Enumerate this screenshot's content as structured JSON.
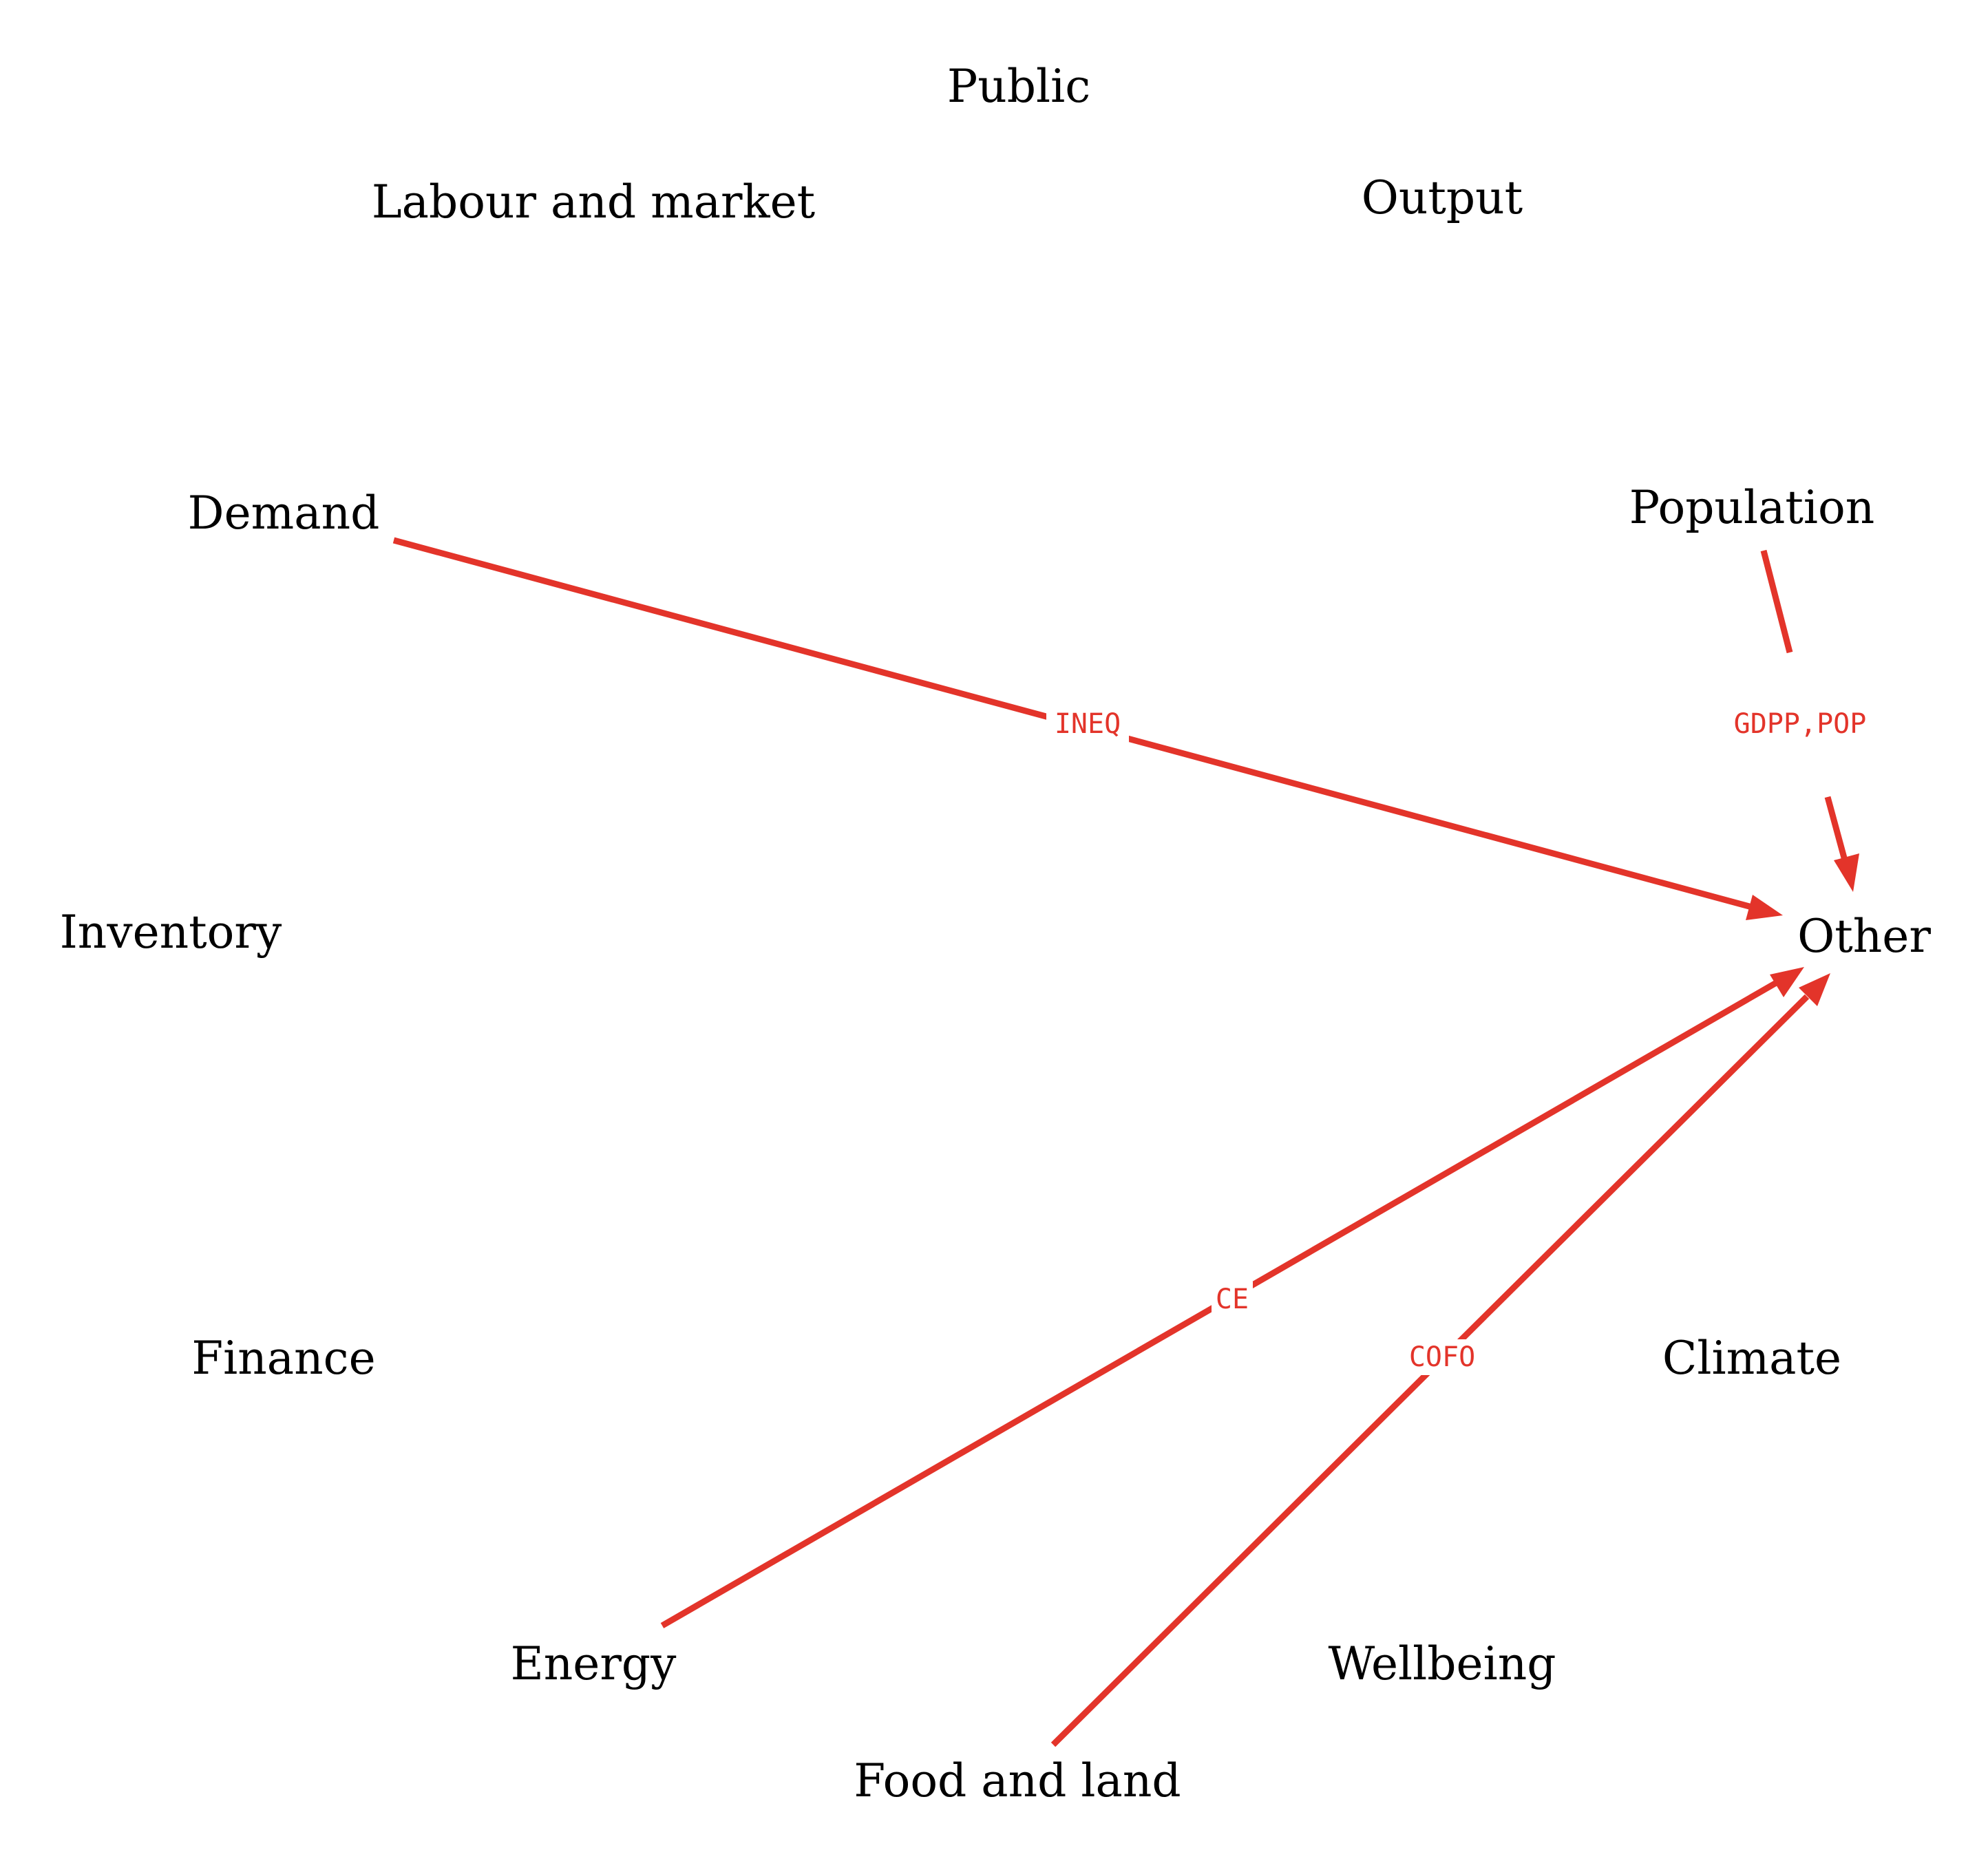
{
  "edge_color": "#e3342a",
  "nodes": {
    "public": "Public",
    "labour": "Labour and market",
    "output": "Output",
    "demand": "Demand",
    "population": "Population",
    "inventory": "Inventory",
    "other": "Other",
    "finance": "Finance",
    "climate": "Climate",
    "energy": "Energy",
    "wellbeing": "Wellbeing",
    "food": "Food and land"
  },
  "edges": [
    {
      "from": "Demand",
      "to": "Other",
      "label": "INEQ"
    },
    {
      "from": "Population",
      "to": "Other",
      "label": "GDPP,POP"
    },
    {
      "from": "Energy",
      "to": "Other",
      "label": "CE"
    },
    {
      "from": "Food and land",
      "to": "Other",
      "label": "COFO"
    }
  ]
}
